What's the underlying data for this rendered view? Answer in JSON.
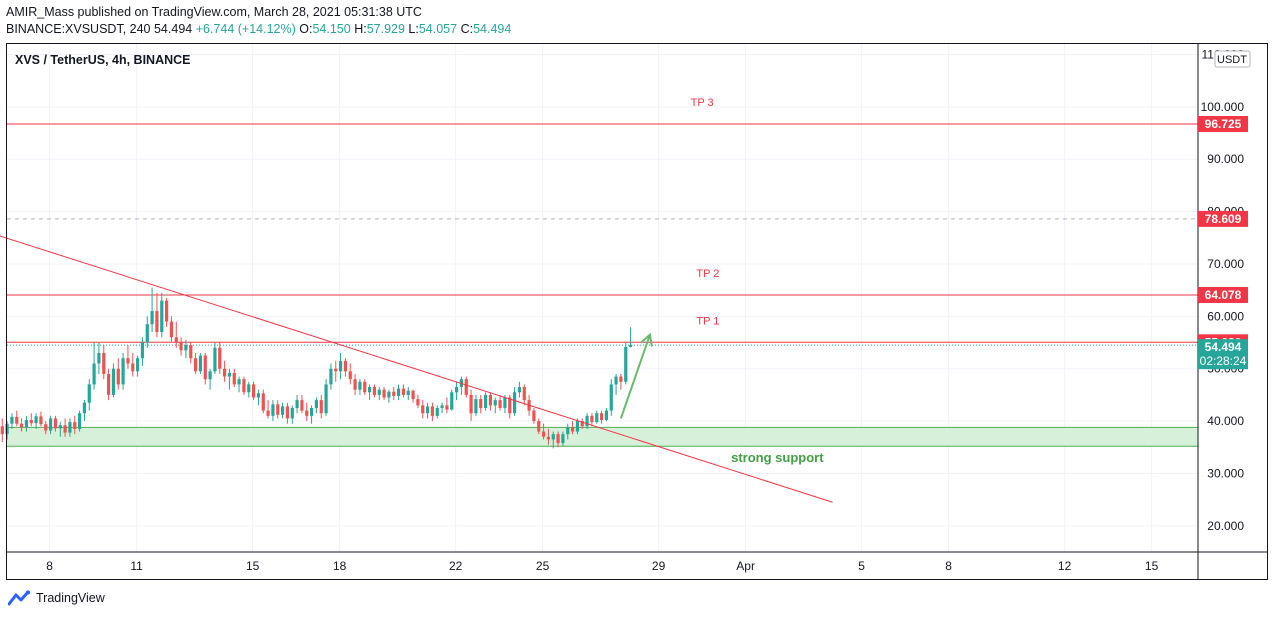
{
  "header": {
    "published": "AMIR_Mass published on TradingView.com, March 28, 2021 05:31:38 UTC",
    "symbol_line_prefix": "BINANCE:XVSUSDT, 240",
    "last_price": "54.494",
    "change": "+6.744 (+14.12%)",
    "o_label": "O:",
    "o": "54.150",
    "h_label": "H:",
    "h": "57.929",
    "l_label": "L:",
    "l": "54.057",
    "c_label": "C:",
    "c": "54.494"
  },
  "legend": {
    "title": "XVS / TetherUS, 4h, BINANCE"
  },
  "footer": {
    "brand": "TradingView"
  },
  "colors": {
    "up": "#26a69a",
    "down": "#ef5350",
    "level": "#f23645",
    "support_fill": "#d7f0d9",
    "support_line": "#4caf50",
    "arrow": "#66bb6a",
    "price_tag": "#26a69a"
  },
  "chart_data": {
    "type": "candlestick",
    "currency": "USDT",
    "ylim": [
      15,
      112
    ],
    "x_ticks": [
      {
        "label": "8",
        "day": 8
      },
      {
        "label": "11",
        "day": 11
      },
      {
        "label": "15",
        "day": 15
      },
      {
        "label": "18",
        "day": 18
      },
      {
        "label": "22",
        "day": 22
      },
      {
        "label": "25",
        "day": 25
      },
      {
        "label": "29",
        "day": 29
      },
      {
        "label": "Apr",
        "day": 32
      },
      {
        "label": "5",
        "day": 36
      },
      {
        "label": "8",
        "day": 39
      },
      {
        "label": "12",
        "day": 43
      },
      {
        "label": "15",
        "day": 46
      }
    ],
    "y_ticks": [
      "20.000",
      "30.000",
      "40.000",
      "50.000",
      "60.000",
      "70.000",
      "80.000",
      "90.000",
      "100.000",
      "110.000"
    ],
    "y_tick_values": [
      20,
      30,
      40,
      50,
      60,
      70,
      80,
      90,
      100,
      110
    ],
    "levels": [
      {
        "name": "TP 3",
        "value": 96.725,
        "tag": "96.725",
        "dashed": false,
        "label_day": 30.5
      },
      {
        "name": "",
        "value": 78.609,
        "tag": "78.609",
        "dashed": true,
        "label_day": null
      },
      {
        "name": "TP 2",
        "value": 64.078,
        "tag": "64.078",
        "dashed": false,
        "label_day": 30.7
      },
      {
        "name": "TP 1",
        "value": 55.039,
        "tag": "55.039",
        "dashed": false,
        "label_day": 30.7
      }
    ],
    "current_price": {
      "value": 54.494,
      "tag": "54.494",
      "countdown": "02:28:24"
    },
    "support_zone": {
      "low": 35.2,
      "high": 38.8,
      "label": "strong support",
      "label_day": 31.5
    },
    "trendline": {
      "start": {
        "day": 6.2,
        "value": 75.5
      },
      "end": {
        "day": 35.0,
        "value": 24.5
      }
    },
    "arrow": {
      "from": {
        "day": 27.7,
        "value": 40.5
      },
      "to": {
        "day": 28.7,
        "value": 56.5
      }
    },
    "candles": [
      {
        "day": 6.2,
        "o": 42.0,
        "h": 44.0,
        "l": 38.0,
        "c": 39.0
      },
      {
        "day": 6.367,
        "o": 39.0,
        "h": 40.5,
        "l": 36.0,
        "c": 37.5
      },
      {
        "day": 6.533,
        "o": 37.5,
        "h": 40.0,
        "l": 36.5,
        "c": 39.5
      },
      {
        "day": 6.7,
        "o": 39.5,
        "h": 41.5,
        "l": 38.5,
        "c": 40.8
      },
      {
        "day": 6.867,
        "o": 40.8,
        "h": 42.0,
        "l": 39.0,
        "c": 39.5
      },
      {
        "day": 7.033,
        "o": 39.5,
        "h": 40.5,
        "l": 38.0,
        "c": 38.8
      },
      {
        "day": 7.2,
        "o": 38.8,
        "h": 41.0,
        "l": 38.0,
        "c": 40.2
      },
      {
        "day": 7.367,
        "o": 40.2,
        "h": 41.5,
        "l": 39.0,
        "c": 39.6
      },
      {
        "day": 7.533,
        "o": 39.6,
        "h": 41.5,
        "l": 38.5,
        "c": 40.9
      },
      {
        "day": 7.7,
        "o": 40.9,
        "h": 41.8,
        "l": 39.0,
        "c": 39.4
      },
      {
        "day": 7.867,
        "o": 39.4,
        "h": 40.0,
        "l": 37.5,
        "c": 38.2
      },
      {
        "day": 8.033,
        "o": 38.2,
        "h": 41.0,
        "l": 37.5,
        "c": 40.5
      },
      {
        "day": 8.2,
        "o": 40.5,
        "h": 41.0,
        "l": 38.0,
        "c": 38.6
      },
      {
        "day": 8.367,
        "o": 38.6,
        "h": 39.8,
        "l": 37.0,
        "c": 39.2
      },
      {
        "day": 8.533,
        "o": 39.2,
        "h": 40.5,
        "l": 37.0,
        "c": 37.8
      },
      {
        "day": 8.7,
        "o": 37.8,
        "h": 40.5,
        "l": 37.0,
        "c": 39.8
      },
      {
        "day": 8.867,
        "o": 39.8,
        "h": 41.0,
        "l": 37.5,
        "c": 38.5
      },
      {
        "day": 9.033,
        "o": 38.5,
        "h": 42.0,
        "l": 38.0,
        "c": 41.5
      },
      {
        "day": 9.2,
        "o": 41.5,
        "h": 44.0,
        "l": 40.0,
        "c": 43.5
      },
      {
        "day": 9.367,
        "o": 43.5,
        "h": 48.0,
        "l": 42.0,
        "c": 47.0
      },
      {
        "day": 9.533,
        "o": 47.0,
        "h": 55.0,
        "l": 46.0,
        "c": 51.0
      },
      {
        "day": 9.7,
        "o": 51.0,
        "h": 55.0,
        "l": 49.0,
        "c": 53.0
      },
      {
        "day": 9.867,
        "o": 53.0,
        "h": 54.5,
        "l": 48.0,
        "c": 49.0
      },
      {
        "day": 10.033,
        "o": 49.0,
        "h": 50.0,
        "l": 44.0,
        "c": 45.0
      },
      {
        "day": 10.2,
        "o": 45.0,
        "h": 51.0,
        "l": 44.5,
        "c": 50.0
      },
      {
        "day": 10.367,
        "o": 50.0,
        "h": 52.0,
        "l": 46.0,
        "c": 47.0
      },
      {
        "day": 10.533,
        "o": 47.0,
        "h": 53.0,
        "l": 46.0,
        "c": 52.0
      },
      {
        "day": 10.7,
        "o": 52.0,
        "h": 54.5,
        "l": 50.0,
        "c": 51.0
      },
      {
        "day": 10.867,
        "o": 51.0,
        "h": 53.0,
        "l": 48.5,
        "c": 49.5
      },
      {
        "day": 11.033,
        "o": 49.5,
        "h": 52.5,
        "l": 48.5,
        "c": 52.0
      },
      {
        "day": 11.2,
        "o": 52.0,
        "h": 56.0,
        "l": 50.5,
        "c": 55.0
      },
      {
        "day": 11.367,
        "o": 55.0,
        "h": 60.0,
        "l": 54.0,
        "c": 58.5
      },
      {
        "day": 11.533,
        "o": 58.5,
        "h": 65.5,
        "l": 57.0,
        "c": 61.0
      },
      {
        "day": 11.7,
        "o": 61.0,
        "h": 64.5,
        "l": 56.0,
        "c": 57.0
      },
      {
        "day": 11.867,
        "o": 57.0,
        "h": 64.5,
        "l": 56.0,
        "c": 63.0
      },
      {
        "day": 12.033,
        "o": 63.0,
        "h": 63.5,
        "l": 58.0,
        "c": 59.0
      },
      {
        "day": 12.2,
        "o": 59.0,
        "h": 60.0,
        "l": 55.0,
        "c": 56.0
      },
      {
        "day": 12.367,
        "o": 56.0,
        "h": 59.0,
        "l": 54.0,
        "c": 55.0
      },
      {
        "day": 12.533,
        "o": 55.0,
        "h": 56.0,
        "l": 52.5,
        "c": 53.5
      },
      {
        "day": 12.7,
        "o": 53.5,
        "h": 55.5,
        "l": 52.0,
        "c": 54.5
      },
      {
        "day": 12.867,
        "o": 54.5,
        "h": 55.0,
        "l": 51.0,
        "c": 52.0
      },
      {
        "day": 13.033,
        "o": 52.0,
        "h": 53.0,
        "l": 49.0,
        "c": 49.5
      },
      {
        "day": 13.2,
        "o": 49.5,
        "h": 53.0,
        "l": 49.0,
        "c": 52.5
      },
      {
        "day": 13.367,
        "o": 52.5,
        "h": 53.0,
        "l": 47.0,
        "c": 48.0
      },
      {
        "day": 13.533,
        "o": 48.0,
        "h": 50.0,
        "l": 46.0,
        "c": 49.5
      },
      {
        "day": 13.7,
        "o": 49.5,
        "h": 55.0,
        "l": 49.0,
        "c": 54.0
      },
      {
        "day": 13.867,
        "o": 54.0,
        "h": 55.0,
        "l": 49.0,
        "c": 50.0
      },
      {
        "day": 14.033,
        "o": 50.0,
        "h": 51.5,
        "l": 47.5,
        "c": 48.5
      },
      {
        "day": 14.2,
        "o": 48.5,
        "h": 50.0,
        "l": 46.0,
        "c": 49.2
      },
      {
        "day": 14.367,
        "o": 49.2,
        "h": 50.0,
        "l": 46.5,
        "c": 47.0
      },
      {
        "day": 14.533,
        "o": 47.0,
        "h": 48.5,
        "l": 45.5,
        "c": 48.0
      },
      {
        "day": 14.7,
        "o": 48.0,
        "h": 48.5,
        "l": 45.0,
        "c": 45.5
      },
      {
        "day": 14.867,
        "o": 45.5,
        "h": 47.5,
        "l": 44.5,
        "c": 47.0
      },
      {
        "day": 15.033,
        "o": 47.0,
        "h": 47.5,
        "l": 44.0,
        "c": 44.5
      },
      {
        "day": 15.2,
        "o": 44.5,
        "h": 46.0,
        "l": 43.0,
        "c": 45.3
      },
      {
        "day": 15.367,
        "o": 45.3,
        "h": 46.0,
        "l": 41.5,
        "c": 42.0
      },
      {
        "day": 15.533,
        "o": 42.0,
        "h": 44.0,
        "l": 40.5,
        "c": 41.0
      },
      {
        "day": 15.7,
        "o": 41.0,
        "h": 44.0,
        "l": 40.0,
        "c": 43.2
      },
      {
        "day": 15.867,
        "o": 43.2,
        "h": 44.0,
        "l": 40.5,
        "c": 41.2
      },
      {
        "day": 16.033,
        "o": 41.2,
        "h": 43.5,
        "l": 40.5,
        "c": 42.8
      },
      {
        "day": 16.2,
        "o": 42.8,
        "h": 43.5,
        "l": 39.5,
        "c": 40.5
      },
      {
        "day": 16.367,
        "o": 40.5,
        "h": 43.0,
        "l": 39.5,
        "c": 42.5
      },
      {
        "day": 16.533,
        "o": 42.5,
        "h": 45.0,
        "l": 41.5,
        "c": 44.0
      },
      {
        "day": 16.7,
        "o": 44.0,
        "h": 45.0,
        "l": 41.5,
        "c": 42.0
      },
      {
        "day": 16.867,
        "o": 42.0,
        "h": 43.5,
        "l": 40.0,
        "c": 41.0
      },
      {
        "day": 17.033,
        "o": 41.0,
        "h": 43.0,
        "l": 39.5,
        "c": 42.5
      },
      {
        "day": 17.2,
        "o": 42.5,
        "h": 44.5,
        "l": 41.5,
        "c": 44.0
      },
      {
        "day": 17.367,
        "o": 44.0,
        "h": 45.0,
        "l": 40.5,
        "c": 41.5
      },
      {
        "day": 17.533,
        "o": 41.5,
        "h": 48.0,
        "l": 41.0,
        "c": 47.0
      },
      {
        "day": 17.7,
        "o": 47.0,
        "h": 51.0,
        "l": 46.0,
        "c": 50.0
      },
      {
        "day": 17.867,
        "o": 50.0,
        "h": 51.5,
        "l": 47.5,
        "c": 49.5
      },
      {
        "day": 18.033,
        "o": 49.5,
        "h": 53.0,
        "l": 48.0,
        "c": 51.5
      },
      {
        "day": 18.2,
        "o": 51.5,
        "h": 52.0,
        "l": 48.5,
        "c": 49.5
      },
      {
        "day": 18.367,
        "o": 49.5,
        "h": 51.0,
        "l": 47.0,
        "c": 48.0
      },
      {
        "day": 18.533,
        "o": 48.0,
        "h": 49.0,
        "l": 45.0,
        "c": 46.0
      },
      {
        "day": 18.7,
        "o": 46.0,
        "h": 48.0,
        "l": 45.0,
        "c": 47.5
      },
      {
        "day": 18.867,
        "o": 47.5,
        "h": 48.0,
        "l": 45.0,
        "c": 45.5
      },
      {
        "day": 19.033,
        "o": 45.5,
        "h": 47.0,
        "l": 44.0,
        "c": 46.5
      },
      {
        "day": 19.2,
        "o": 46.5,
        "h": 47.0,
        "l": 44.5,
        "c": 45.0
      },
      {
        "day": 19.367,
        "o": 45.0,
        "h": 46.5,
        "l": 44.0,
        "c": 46.0
      },
      {
        "day": 19.533,
        "o": 46.0,
        "h": 46.5,
        "l": 44.0,
        "c": 44.5
      },
      {
        "day": 19.7,
        "o": 44.5,
        "h": 46.0,
        "l": 43.5,
        "c": 45.6
      },
      {
        "day": 19.867,
        "o": 45.6,
        "h": 46.5,
        "l": 44.0,
        "c": 44.8
      },
      {
        "day": 20.033,
        "o": 44.8,
        "h": 47.0,
        "l": 44.0,
        "c": 46.2
      },
      {
        "day": 20.2,
        "o": 46.2,
        "h": 47.0,
        "l": 44.5,
        "c": 45.0
      },
      {
        "day": 20.367,
        "o": 45.0,
        "h": 46.5,
        "l": 44.0,
        "c": 45.8
      },
      {
        "day": 20.533,
        "o": 45.8,
        "h": 46.0,
        "l": 43.5,
        "c": 44.2
      },
      {
        "day": 20.7,
        "o": 44.2,
        "h": 45.0,
        "l": 42.5,
        "c": 43.0
      },
      {
        "day": 20.867,
        "o": 43.0,
        "h": 44.0,
        "l": 40.5,
        "c": 41.5
      },
      {
        "day": 21.033,
        "o": 41.5,
        "h": 43.5,
        "l": 40.5,
        "c": 42.8
      },
      {
        "day": 21.2,
        "o": 42.8,
        "h": 43.5,
        "l": 40.0,
        "c": 41.0
      },
      {
        "day": 21.367,
        "o": 41.0,
        "h": 43.0,
        "l": 40.5,
        "c": 42.5
      },
      {
        "day": 21.533,
        "o": 42.5,
        "h": 43.5,
        "l": 41.5,
        "c": 43.0
      },
      {
        "day": 21.7,
        "o": 43.0,
        "h": 44.5,
        "l": 41.5,
        "c": 42.2
      },
      {
        "day": 21.867,
        "o": 42.2,
        "h": 46.0,
        "l": 42.0,
        "c": 45.5
      },
      {
        "day": 22.033,
        "o": 45.5,
        "h": 47.5,
        "l": 44.0,
        "c": 46.5
      },
      {
        "day": 22.2,
        "o": 46.5,
        "h": 48.5,
        "l": 45.0,
        "c": 48.0
      },
      {
        "day": 22.367,
        "o": 48.0,
        "h": 48.5,
        "l": 44.5,
        "c": 45.0
      },
      {
        "day": 22.533,
        "o": 45.0,
        "h": 46.0,
        "l": 40.0,
        "c": 41.5
      },
      {
        "day": 22.7,
        "o": 41.5,
        "h": 45.0,
        "l": 41.0,
        "c": 44.2
      },
      {
        "day": 22.867,
        "o": 44.2,
        "h": 45.0,
        "l": 41.5,
        "c": 42.5
      },
      {
        "day": 23.033,
        "o": 42.5,
        "h": 45.5,
        "l": 42.0,
        "c": 45.0
      },
      {
        "day": 23.2,
        "o": 45.0,
        "h": 45.5,
        "l": 42.0,
        "c": 43.0
      },
      {
        "day": 23.367,
        "o": 43.0,
        "h": 44.5,
        "l": 41.5,
        "c": 44.0
      },
      {
        "day": 23.533,
        "o": 44.0,
        "h": 45.0,
        "l": 42.0,
        "c": 42.5
      },
      {
        "day": 23.7,
        "o": 42.5,
        "h": 45.0,
        "l": 41.5,
        "c": 44.5
      },
      {
        "day": 23.867,
        "o": 44.5,
        "h": 45.0,
        "l": 40.5,
        "c": 41.5
      },
      {
        "day": 24.033,
        "o": 41.5,
        "h": 46.5,
        "l": 41.0,
        "c": 45.5
      },
      {
        "day": 24.2,
        "o": 45.5,
        "h": 47.5,
        "l": 44.5,
        "c": 46.5
      },
      {
        "day": 24.367,
        "o": 46.5,
        "h": 47.0,
        "l": 43.0,
        "c": 44.0
      },
      {
        "day": 24.533,
        "o": 44.0,
        "h": 45.0,
        "l": 41.0,
        "c": 42.0
      },
      {
        "day": 24.7,
        "o": 42.0,
        "h": 42.5,
        "l": 39.5,
        "c": 40.0
      },
      {
        "day": 24.867,
        "o": 40.0,
        "h": 40.5,
        "l": 37.5,
        "c": 38.0
      },
      {
        "day": 25.033,
        "o": 38.0,
        "h": 39.5,
        "l": 36.5,
        "c": 37.0
      },
      {
        "day": 25.2,
        "o": 37.0,
        "h": 38.5,
        "l": 35.5,
        "c": 36.5
      },
      {
        "day": 25.367,
        "o": 36.5,
        "h": 38.0,
        "l": 34.8,
        "c": 37.5
      },
      {
        "day": 25.533,
        "o": 37.5,
        "h": 38.0,
        "l": 35.0,
        "c": 35.8
      },
      {
        "day": 25.7,
        "o": 35.8,
        "h": 38.0,
        "l": 35.2,
        "c": 37.5
      },
      {
        "day": 25.867,
        "o": 37.5,
        "h": 39.5,
        "l": 36.5,
        "c": 38.8
      },
      {
        "day": 26.033,
        "o": 38.8,
        "h": 40.0,
        "l": 37.5,
        "c": 38.0
      },
      {
        "day": 26.2,
        "o": 38.0,
        "h": 40.5,
        "l": 37.5,
        "c": 40.0
      },
      {
        "day": 26.367,
        "o": 40.0,
        "h": 40.5,
        "l": 38.5,
        "c": 39.0
      },
      {
        "day": 26.533,
        "o": 39.0,
        "h": 41.5,
        "l": 38.5,
        "c": 41.0
      },
      {
        "day": 26.7,
        "o": 41.0,
        "h": 41.5,
        "l": 39.0,
        "c": 39.8
      },
      {
        "day": 26.867,
        "o": 39.8,
        "h": 42.0,
        "l": 39.5,
        "c": 41.5
      },
      {
        "day": 27.033,
        "o": 41.5,
        "h": 42.0,
        "l": 39.5,
        "c": 40.2
      },
      {
        "day": 27.2,
        "o": 40.2,
        "h": 42.5,
        "l": 40.0,
        "c": 42.0
      },
      {
        "day": 27.367,
        "o": 42.0,
        "h": 48.0,
        "l": 41.0,
        "c": 47.0
      },
      {
        "day": 27.533,
        "o": 47.0,
        "h": 49.0,
        "l": 45.0,
        "c": 48.5
      },
      {
        "day": 27.7,
        "o": 48.5,
        "h": 49.0,
        "l": 46.0,
        "c": 47.5
      },
      {
        "day": 27.867,
        "o": 47.5,
        "h": 55.0,
        "l": 47.0,
        "c": 54.15
      },
      {
        "day": 28.033,
        "o": 54.15,
        "h": 57.929,
        "l": 54.057,
        "c": 54.494
      }
    ]
  }
}
